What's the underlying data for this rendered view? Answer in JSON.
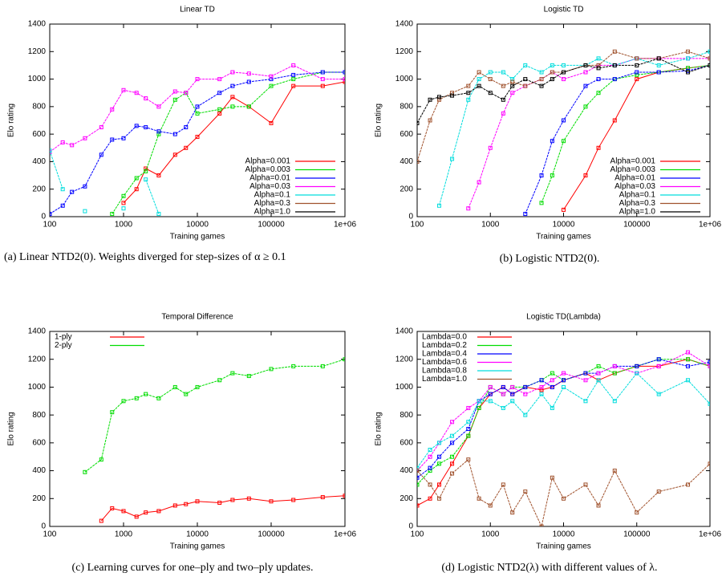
{
  "chart_data": [
    {
      "type": "line",
      "title": "Linear TD",
      "x_label": "Training games",
      "y_label": "Elo rating",
      "caption": "(a) Linear NTD2(0). Weights diverged for step-sizes of α ≥ 0.1",
      "xscale": "log",
      "xlim": [
        100,
        1000000
      ],
      "xticks": [
        100,
        1000,
        10000,
        100000,
        {
          "value": 1000000,
          "label": "1e+06"
        }
      ],
      "ylim": [
        0,
        1400
      ],
      "yticks": [
        0,
        200,
        400,
        600,
        800,
        1000,
        1200,
        1400
      ],
      "legend": "lower right",
      "x": [
        100,
        150,
        200,
        300,
        500,
        700,
        1000,
        1500,
        2000,
        3000,
        5000,
        7000,
        10000,
        20000,
        30000,
        50000,
        100000,
        200000,
        500000,
        1000000
      ],
      "series": [
        {
          "name": "Alpha=0.001",
          "color": "#ff0000",
          "values": [
            null,
            null,
            null,
            null,
            null,
            null,
            100,
            200,
            350,
            300,
            450,
            500,
            580,
            750,
            870,
            800,
            680,
            950,
            950,
            980
          ]
        },
        {
          "name": "Alpha=0.003",
          "color": "#00dd00",
          "values": [
            null,
            null,
            null,
            null,
            null,
            20,
            150,
            280,
            330,
            600,
            850,
            900,
            750,
            780,
            800,
            800,
            950,
            1000,
            1050,
            1050
          ]
        },
        {
          "name": "Alpha=0.01",
          "color": "#0000ff",
          "values": [
            20,
            80,
            180,
            220,
            450,
            560,
            570,
            660,
            650,
            620,
            600,
            650,
            800,
            900,
            950,
            980,
            1000,
            1030,
            1050,
            1050
          ]
        },
        {
          "name": "Alpha=0.03",
          "color": "#ff00ff",
          "values": [
            470,
            540,
            520,
            570,
            650,
            780,
            920,
            900,
            860,
            800,
            910,
            900,
            1000,
            1000,
            1050,
            1040,
            1020,
            1100,
            1000,
            1000
          ]
        },
        {
          "name": "Alpha=0.1",
          "color": "#00dddd",
          "values": [
            480,
            200,
            null,
            40,
            null,
            null,
            60,
            null,
            270,
            20,
            null,
            null,
            null,
            null,
            null,
            null,
            null,
            null,
            null,
            null
          ]
        },
        {
          "name": "Alpha=0.3",
          "color": "#a0522d",
          "values": [
            null,
            null,
            null,
            null,
            null,
            null,
            null,
            null,
            null,
            null,
            null,
            null,
            null,
            null,
            null,
            null,
            null,
            null,
            null,
            null
          ]
        },
        {
          "name": "Alpha=1.0",
          "color": "#000000",
          "values": [
            null,
            null,
            null,
            null,
            null,
            null,
            null,
            null,
            null,
            null,
            null,
            null,
            null,
            null,
            null,
            null,
            null,
            null,
            null,
            null
          ]
        }
      ]
    },
    {
      "type": "line",
      "title": "Logistic TD",
      "x_label": "Training games",
      "y_label": "Elo rating",
      "caption": "(b) Logistic NTD2(0).",
      "xscale": "log",
      "xlim": [
        100,
        1000000
      ],
      "xticks": [
        100,
        1000,
        10000,
        100000,
        {
          "value": 1000000,
          "label": "1e+06"
        }
      ],
      "ylim": [
        0,
        1400
      ],
      "yticks": [
        0,
        200,
        400,
        600,
        800,
        1000,
        1200,
        1400
      ],
      "legend": "lower right",
      "x": [
        100,
        150,
        200,
        300,
        500,
        700,
        1000,
        1500,
        2000,
        3000,
        5000,
        7000,
        10000,
        20000,
        30000,
        50000,
        100000,
        200000,
        500000,
        1000000
      ],
      "series": [
        {
          "name": "Alpha=0.001",
          "color": "#ff0000",
          "values": [
            null,
            null,
            null,
            null,
            null,
            null,
            null,
            null,
            null,
            null,
            null,
            null,
            50,
            300,
            500,
            700,
            1000,
            1050,
            1080,
            1100
          ]
        },
        {
          "name": "Alpha=0.003",
          "color": "#00dd00",
          "values": [
            null,
            null,
            null,
            null,
            null,
            null,
            null,
            null,
            null,
            null,
            100,
            300,
            550,
            800,
            900,
            1000,
            1030,
            1050,
            1080,
            1100
          ]
        },
        {
          "name": "Alpha=0.01",
          "color": "#0000ff",
          "values": [
            null,
            null,
            null,
            null,
            null,
            null,
            null,
            null,
            null,
            20,
            300,
            550,
            700,
            950,
            1000,
            1000,
            1050,
            1050,
            1060,
            1100
          ]
        },
        {
          "name": "Alpha=0.03",
          "color": "#ff00ff",
          "values": [
            null,
            null,
            null,
            null,
            60,
            250,
            500,
            750,
            900,
            950,
            1000,
            1050,
            1000,
            1050,
            1100,
            1100,
            1150,
            1150,
            1150,
            1150
          ]
        },
        {
          "name": "Alpha=0.1",
          "color": "#00dddd",
          "values": [
            null,
            null,
            80,
            420,
            850,
            1000,
            1050,
            1050,
            1000,
            1100,
            1050,
            1100,
            1100,
            1100,
            1150,
            1100,
            1150,
            1100,
            1150,
            1200
          ]
        },
        {
          "name": "Alpha=0.3",
          "color": "#a0522d",
          "values": [
            400,
            700,
            850,
            900,
            950,
            1050,
            1000,
            950,
            980,
            950,
            1000,
            1050,
            1050,
            1100,
            1100,
            1200,
            1150,
            1150,
            1200,
            1150
          ]
        },
        {
          "name": "Alpha=1.0",
          "color": "#000000",
          "values": [
            680,
            850,
            870,
            880,
            900,
            950,
            900,
            850,
            950,
            1000,
            950,
            1000,
            1050,
            1100,
            1080,
            1100,
            1100,
            1150,
            1050,
            1100
          ]
        }
      ]
    },
    {
      "type": "line",
      "title": "Temporal Difference",
      "x_label": "Training games",
      "y_label": "Elo rating",
      "caption": "(c) Learning curves for one–ply and two–ply updates.",
      "xscale": "log",
      "xlim": [
        100,
        1000000
      ],
      "xticks": [
        100,
        1000,
        10000,
        100000,
        {
          "value": 1000000,
          "label": "1e+06"
        }
      ],
      "ylim": [
        0,
        1400
      ],
      "yticks": [
        0,
        200,
        400,
        600,
        800,
        1000,
        1200,
        1400
      ],
      "legend": "upper left",
      "x": [
        100,
        150,
        200,
        300,
        500,
        700,
        1000,
        1500,
        2000,
        3000,
        5000,
        7000,
        10000,
        20000,
        30000,
        50000,
        100000,
        200000,
        500000,
        1000000
      ],
      "series": [
        {
          "name": "1-ply",
          "color": "#ff0000",
          "values": [
            null,
            null,
            null,
            null,
            40,
            130,
            110,
            70,
            100,
            110,
            150,
            160,
            180,
            170,
            190,
            200,
            180,
            190,
            210,
            220
          ]
        },
        {
          "name": "2-ply",
          "color": "#00dd00",
          "values": [
            null,
            null,
            null,
            390,
            480,
            820,
            900,
            920,
            950,
            920,
            1000,
            950,
            1000,
            1050,
            1100,
            1080,
            1130,
            1150,
            1150,
            1200
          ]
        }
      ]
    },
    {
      "type": "line",
      "title": "Logistic TD(Lambda)",
      "x_label": "Training games",
      "y_label": "Elo rating",
      "caption": "(d) Logistic NTD2(λ) with different values of λ.",
      "xscale": "log",
      "xlim": [
        100,
        1000000
      ],
      "xticks": [
        100,
        1000,
        10000,
        100000,
        {
          "value": 1000000,
          "label": "1e+06"
        }
      ],
      "ylim": [
        0,
        1400
      ],
      "yticks": [
        0,
        200,
        400,
        600,
        800,
        1000,
        1200,
        1400
      ],
      "legend": "upper left",
      "x": [
        100,
        150,
        200,
        300,
        500,
        700,
        1000,
        1500,
        2000,
        3000,
        5000,
        7000,
        10000,
        20000,
        30000,
        50000,
        100000,
        200000,
        500000,
        1000000
      ],
      "series": [
        {
          "name": "Lambda=0.0",
          "color": "#ff0000",
          "values": [
            150,
            200,
            300,
            450,
            650,
            850,
            950,
            1000,
            950,
            1000,
            980,
            1000,
            1050,
            1100,
            1050,
            1100,
            1150,
            1150,
            1200,
            1150
          ]
        },
        {
          "name": "Lambda=0.2",
          "color": "#00dd00",
          "values": [
            300,
            400,
            450,
            500,
            650,
            850,
            1000,
            950,
            1000,
            1000,
            1050,
            1100,
            1050,
            1100,
            1150,
            1100,
            1150,
            1200,
            1200,
            1150
          ]
        },
        {
          "name": "Lambda=0.4",
          "color": "#0000ff",
          "values": [
            350,
            420,
            500,
            600,
            700,
            900,
            950,
            1000,
            950,
            1000,
            1050,
            1000,
            1050,
            1100,
            1100,
            1150,
            1150,
            1200,
            1150,
            1180
          ]
        },
        {
          "name": "Lambda=0.6",
          "color": "#ff00ff",
          "values": [
            400,
            500,
            600,
            750,
            850,
            900,
            1000,
            950,
            1000,
            950,
            1000,
            1050,
            1100,
            1050,
            1100,
            1150,
            1100,
            1150,
            1250,
            1150
          ]
        },
        {
          "name": "Lambda=0.8",
          "color": "#00dddd",
          "values": [
            420,
            550,
            600,
            650,
            750,
            900,
            900,
            850,
            900,
            800,
            950,
            850,
            1000,
            900,
            1050,
            900,
            1100,
            950,
            1050,
            880
          ]
        },
        {
          "name": "Lambda=1.0",
          "color": "#a0522d",
          "values": [
            400,
            300,
            200,
            380,
            480,
            200,
            150,
            300,
            100,
            250,
            0,
            350,
            200,
            300,
            150,
            400,
            100,
            250,
            300,
            450
          ]
        }
      ]
    }
  ]
}
